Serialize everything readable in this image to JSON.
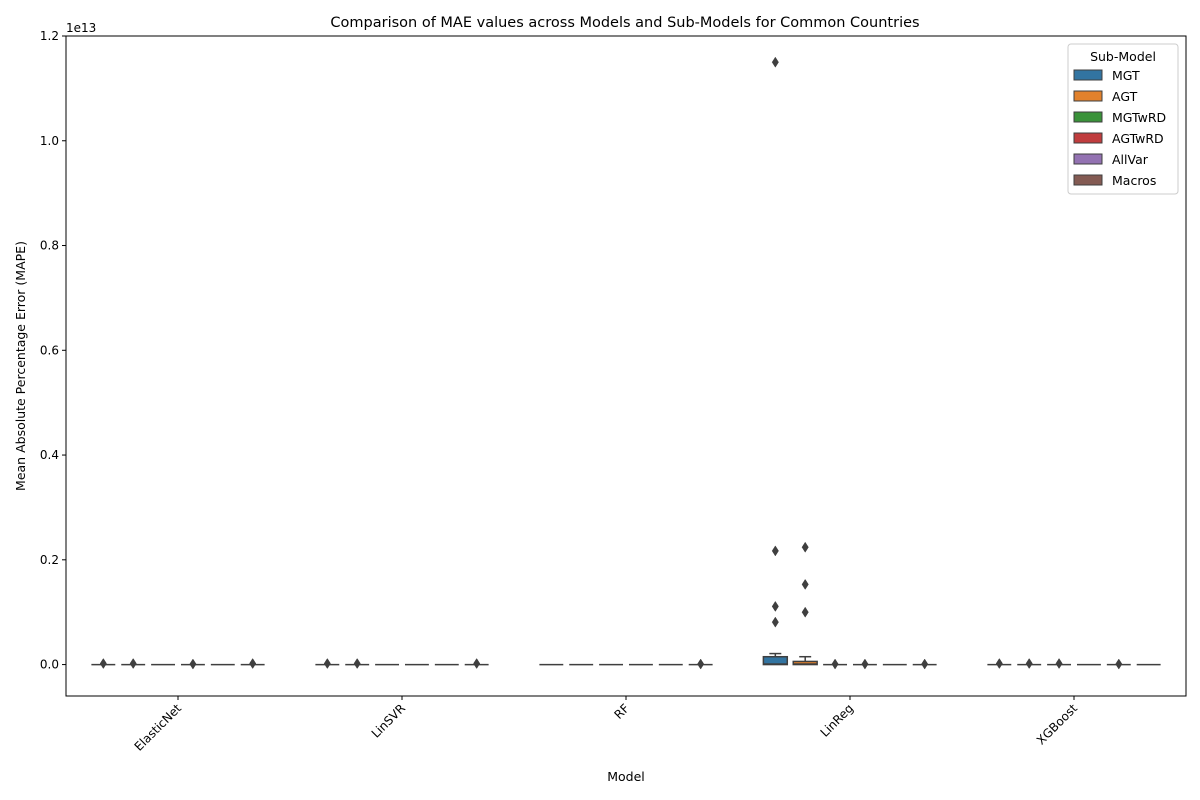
{
  "chart_data": {
    "type": "box",
    "title": "Comparison of MAE values across Models and Sub-Models for Common Countries",
    "xlabel": "Model",
    "ylabel": "Mean Absolute Percentage Error (MAPE)",
    "y_offset_label": "1e13",
    "y_scale": 10000000000000.0,
    "ylim": [
      -0.06,
      1.2
    ],
    "yticks": [
      0.0,
      0.2,
      0.4,
      0.6,
      0.8,
      1.0,
      1.2
    ],
    "ytick_labels": [
      "0.0",
      "0.2",
      "0.4",
      "0.6",
      "0.8",
      "1.0",
      "1.2"
    ],
    "categories": [
      "ElasticNet",
      "LinSVR",
      "RF",
      "LinReg",
      "XGBoost"
    ],
    "legend": {
      "title": "Sub-Model",
      "position": "top-right",
      "entries": [
        {
          "name": "MGT",
          "color": "#3274a1"
        },
        {
          "name": "AGT",
          "color": "#e1812c"
        },
        {
          "name": "MGTwRD",
          "color": "#3a923a"
        },
        {
          "name": "AGTwRD",
          "color": "#c03d3e"
        },
        {
          "name": "AllVar",
          "color": "#9372b2"
        },
        {
          "name": "Macros",
          "color": "#845b53"
        }
      ]
    },
    "grid": false,
    "boxes": [
      {
        "model": 0,
        "sub": 0,
        "q1": 0,
        "median": 0,
        "q3": 0,
        "whisker_low": 0,
        "whisker_high": 0,
        "outliers": [
          0.002
        ]
      },
      {
        "model": 0,
        "sub": 1,
        "q1": 0,
        "median": 0,
        "q3": 0,
        "whisker_low": 0,
        "whisker_high": 0,
        "outliers": [
          0.002
        ]
      },
      {
        "model": 0,
        "sub": 2,
        "q1": 0,
        "median": 0,
        "q3": 0,
        "whisker_low": 0,
        "whisker_high": 0,
        "outliers": []
      },
      {
        "model": 0,
        "sub": 3,
        "q1": 0,
        "median": 0,
        "q3": 0,
        "whisker_low": 0,
        "whisker_high": 0,
        "outliers": [
          0.001
        ]
      },
      {
        "model": 0,
        "sub": 4,
        "q1": 0,
        "median": 0,
        "q3": 0,
        "whisker_low": 0,
        "whisker_high": 0,
        "outliers": []
      },
      {
        "model": 0,
        "sub": 5,
        "q1": 0,
        "median": 0,
        "q3": 0,
        "whisker_low": 0,
        "whisker_high": 0,
        "outliers": [
          0.002
        ]
      },
      {
        "model": 1,
        "sub": 0,
        "q1": 0,
        "median": 0,
        "q3": 0,
        "whisker_low": 0,
        "whisker_high": 0,
        "outliers": [
          0.002
        ]
      },
      {
        "model": 1,
        "sub": 1,
        "q1": 0,
        "median": 0,
        "q3": 0,
        "whisker_low": 0,
        "whisker_high": 0,
        "outliers": [
          0.002
        ]
      },
      {
        "model": 1,
        "sub": 2,
        "q1": 0,
        "median": 0,
        "q3": 0,
        "whisker_low": 0,
        "whisker_high": 0,
        "outliers": []
      },
      {
        "model": 1,
        "sub": 3,
        "q1": 0,
        "median": 0,
        "q3": 0,
        "whisker_low": 0,
        "whisker_high": 0,
        "outliers": []
      },
      {
        "model": 1,
        "sub": 4,
        "q1": 0,
        "median": 0,
        "q3": 0,
        "whisker_low": 0,
        "whisker_high": 0,
        "outliers": []
      },
      {
        "model": 1,
        "sub": 5,
        "q1": 0,
        "median": 0,
        "q3": 0,
        "whisker_low": 0,
        "whisker_high": 0,
        "outliers": [
          0.002
        ]
      },
      {
        "model": 2,
        "sub": 0,
        "q1": 0,
        "median": 0,
        "q3": 0,
        "whisker_low": 0,
        "whisker_high": 0,
        "outliers": []
      },
      {
        "model": 2,
        "sub": 1,
        "q1": 0,
        "median": 0,
        "q3": 0,
        "whisker_low": 0,
        "whisker_high": 0,
        "outliers": []
      },
      {
        "model": 2,
        "sub": 2,
        "q1": 0,
        "median": 0,
        "q3": 0,
        "whisker_low": 0,
        "whisker_high": 0,
        "outliers": []
      },
      {
        "model": 2,
        "sub": 3,
        "q1": 0,
        "median": 0,
        "q3": 0,
        "whisker_low": 0,
        "whisker_high": 0,
        "outliers": []
      },
      {
        "model": 2,
        "sub": 4,
        "q1": 0,
        "median": 0,
        "q3": 0,
        "whisker_low": 0,
        "whisker_high": 0,
        "outliers": []
      },
      {
        "model": 2,
        "sub": 5,
        "q1": 0,
        "median": 0,
        "q3": 0,
        "whisker_low": 0,
        "whisker_high": 0,
        "outliers": [
          0.001
        ]
      },
      {
        "model": 3,
        "sub": 0,
        "q1": 0.0,
        "median": 0.001,
        "q3": 0.015,
        "whisker_low": 0.0,
        "whisker_high": 0.021,
        "outliers": [
          1.15,
          0.217,
          0.111,
          0.081
        ]
      },
      {
        "model": 3,
        "sub": 1,
        "q1": 0.0,
        "median": 0.001,
        "q3": 0.006,
        "whisker_low": 0.0,
        "whisker_high": 0.015,
        "outliers": [
          0.224,
          0.153,
          0.1
        ]
      },
      {
        "model": 3,
        "sub": 2,
        "q1": 0,
        "median": 0,
        "q3": 0,
        "whisker_low": 0,
        "whisker_high": 0,
        "outliers": [
          0.001
        ]
      },
      {
        "model": 3,
        "sub": 3,
        "q1": 0,
        "median": 0,
        "q3": 0,
        "whisker_low": 0,
        "whisker_high": 0,
        "outliers": [
          0.001
        ]
      },
      {
        "model": 3,
        "sub": 4,
        "q1": 0,
        "median": 0,
        "q3": 0,
        "whisker_low": 0,
        "whisker_high": 0,
        "outliers": []
      },
      {
        "model": 3,
        "sub": 5,
        "q1": 0,
        "median": 0,
        "q3": 0,
        "whisker_low": 0,
        "whisker_high": 0,
        "outliers": [
          0.001
        ]
      },
      {
        "model": 4,
        "sub": 0,
        "q1": 0,
        "median": 0,
        "q3": 0,
        "whisker_low": 0,
        "whisker_high": 0,
        "outliers": [
          0.002
        ]
      },
      {
        "model": 4,
        "sub": 1,
        "q1": 0,
        "median": 0,
        "q3": 0,
        "whisker_low": 0,
        "whisker_high": 0,
        "outliers": [
          0.002
        ]
      },
      {
        "model": 4,
        "sub": 2,
        "q1": 0,
        "median": 0,
        "q3": 0,
        "whisker_low": 0,
        "whisker_high": 0,
        "outliers": [
          0.002
        ]
      },
      {
        "model": 4,
        "sub": 3,
        "q1": 0,
        "median": 0,
        "q3": 0,
        "whisker_low": 0,
        "whisker_high": 0,
        "outliers": []
      },
      {
        "model": 4,
        "sub": 4,
        "q1": 0,
        "median": 0,
        "q3": 0,
        "whisker_low": 0,
        "whisker_high": 0,
        "outliers": [
          0.001
        ]
      },
      {
        "model": 4,
        "sub": 5,
        "q1": 0,
        "median": 0,
        "q3": 0,
        "whisker_low": 0,
        "whisker_high": 0,
        "outliers": []
      }
    ]
  }
}
